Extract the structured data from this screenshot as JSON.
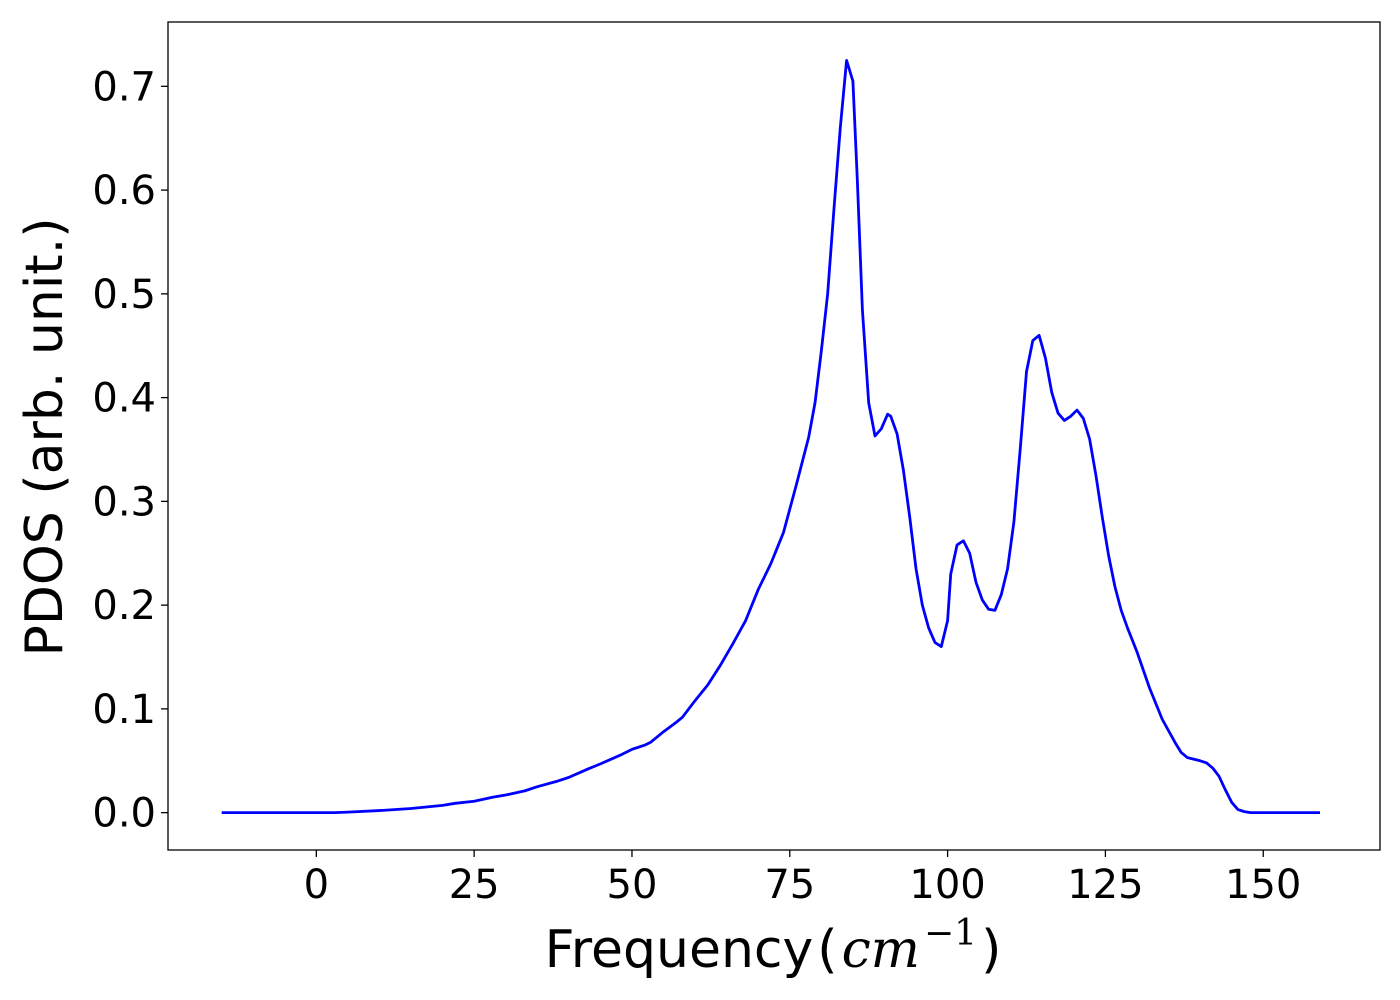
{
  "chart_data": {
    "type": "line",
    "title": "",
    "xlabel": "Frequency",
    "xlabel_unit_text": "cm",
    "xlabel_unit_exponent": "−1",
    "ylabel": "PDOS (arb. unit.)",
    "xlim": [
      -23.5,
      168.5
    ],
    "ylim": [
      -0.036,
      0.762
    ],
    "x_ticks": [
      0,
      25,
      50,
      75,
      100,
      125,
      150
    ],
    "x_tick_labels": [
      "0",
      "25",
      "50",
      "75",
      "100",
      "125",
      "150"
    ],
    "y_ticks": [
      0.0,
      0.1,
      0.2,
      0.3,
      0.4,
      0.5,
      0.6,
      0.7
    ],
    "y_tick_labels": [
      "0.0",
      "0.1",
      "0.2",
      "0.3",
      "0.4",
      "0.5",
      "0.6",
      "0.7"
    ],
    "grid": false,
    "series": [
      {
        "color": "#0000ff",
        "x": [
          -15,
          -10,
          -5,
          0,
          3,
          5,
          10,
          15,
          20,
          22,
          25,
          28,
          30,
          33,
          35,
          38,
          40,
          43,
          45,
          48,
          50,
          52,
          53,
          55,
          57,
          58,
          60,
          62,
          64,
          66,
          68,
          70,
          72,
          73,
          74,
          76,
          78,
          79,
          80,
          81,
          82,
          83,
          84,
          85,
          85.7,
          86.5,
          87.5,
          88.5,
          89.5,
          90.5,
          91,
          92,
          93,
          94,
          95,
          96,
          97,
          98,
          99,
          100,
          100.5,
          101.5,
          102.5,
          103.5,
          104.5,
          105.5,
          106.5,
          107.5,
          108.5,
          109.5,
          110.5,
          111.5,
          112.5,
          113.5,
          114.5,
          115.5,
          116.5,
          117.5,
          118.5,
          119.5,
          120.5,
          121.5,
          122.5,
          123.5,
          124.5,
          125.5,
          126.5,
          127.5,
          128.5,
          130,
          132,
          134,
          136,
          137,
          138,
          140,
          141,
          142,
          143,
          144,
          145,
          146,
          147,
          148,
          150,
          155,
          159
        ],
        "y": [
          0.0,
          0.0,
          0.0,
          0.0,
          0.0,
          0.0005,
          0.002,
          0.004,
          0.007,
          0.009,
          0.011,
          0.015,
          0.017,
          0.021,
          0.025,
          0.03,
          0.034,
          0.042,
          0.047,
          0.055,
          0.061,
          0.065,
          0.068,
          0.078,
          0.087,
          0.092,
          0.108,
          0.123,
          0.142,
          0.163,
          0.185,
          0.215,
          0.24,
          0.255,
          0.27,
          0.315,
          0.362,
          0.395,
          0.445,
          0.5,
          0.582,
          0.66,
          0.725,
          0.705,
          0.61,
          0.485,
          0.395,
          0.363,
          0.37,
          0.384,
          0.382,
          0.365,
          0.33,
          0.285,
          0.235,
          0.2,
          0.178,
          0.164,
          0.16,
          0.185,
          0.23,
          0.258,
          0.262,
          0.25,
          0.222,
          0.205,
          0.196,
          0.195,
          0.21,
          0.235,
          0.28,
          0.35,
          0.425,
          0.455,
          0.46,
          0.438,
          0.405,
          0.385,
          0.378,
          0.382,
          0.388,
          0.38,
          0.36,
          0.325,
          0.285,
          0.248,
          0.218,
          0.195,
          0.178,
          0.155,
          0.12,
          0.09,
          0.068,
          0.058,
          0.053,
          0.05,
          0.048,
          0.043,
          0.035,
          0.022,
          0.01,
          0.003,
          0.001,
          0.0,
          0.0,
          0.0,
          0.0
        ]
      }
    ]
  }
}
